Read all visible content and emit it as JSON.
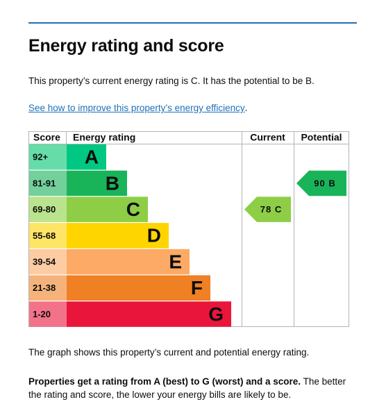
{
  "page": {
    "title": "Energy rating and score",
    "current_text": "This property’s current energy rating is C. It has the potential to be B.",
    "link_text": "See how to improve this property’s energy efficiency",
    "link_suffix": ".",
    "graph_caption": "The graph shows this property’s current and potential energy rating.",
    "explain_bold": "Properties get a rating from A (best) to G (worst) and a score.",
    "explain_rest": " The better the rating and score, the lower your energy bills are likely to be."
  },
  "chart_data": {
    "type": "bar",
    "headers": {
      "score": "Score",
      "rating": "Energy rating",
      "current": "Current",
      "potential": "Potential"
    },
    "bands": [
      {
        "score": "92+",
        "letter": "A",
        "color": "#00c781",
        "score_color": "#66dda9"
      },
      {
        "score": "81-91",
        "letter": "B",
        "color": "#19b459",
        "score_color": "#73d09a"
      },
      {
        "score": "69-80",
        "letter": "C",
        "color": "#8dce46",
        "score_color": "#bae38e"
      },
      {
        "score": "55-68",
        "letter": "D",
        "color": "#ffd500",
        "score_color": "#ffe566"
      },
      {
        "score": "39-54",
        "letter": "E",
        "color": "#fcaa65",
        "score_color": "#fdcca3"
      },
      {
        "score": "21-38",
        "letter": "F",
        "color": "#ef8023",
        "score_color": "#f5b37b"
      },
      {
        "score": "1-20",
        "letter": "G",
        "color": "#e9153b",
        "score_color": "#f27389"
      }
    ],
    "current": {
      "score": 78,
      "letter": "C",
      "label": "78 C",
      "color": "#8dce46"
    },
    "potential": {
      "score": 90,
      "letter": "B",
      "label": "90 B",
      "color": "#19b459"
    }
  }
}
